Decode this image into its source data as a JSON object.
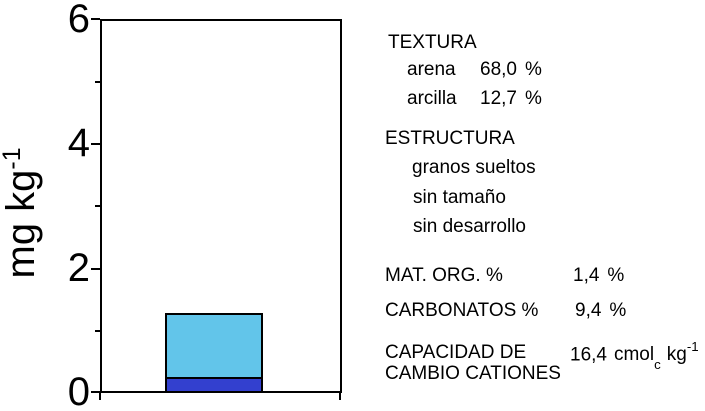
{
  "yaxis": {
    "label_text": "mg kg",
    "label_sup": "-1",
    "labels_top_to_bottom": [
      "6",
      "4",
      "2",
      "0"
    ]
  },
  "chart_data": {
    "type": "bar",
    "stacked": true,
    "categories": [
      ""
    ],
    "series": [
      {
        "name": "lower-dark-blue-fraction",
        "values": [
          0.2
        ],
        "color": "#3340CF"
      },
      {
        "name": "upper-light-blue-fraction",
        "values": [
          1.0
        ],
        "color": "#62C5EA"
      }
    ],
    "total": 1.2,
    "title": "",
    "xlabel": "",
    "ylabel": "mg kg⁻¹",
    "ylim": [
      0,
      6
    ],
    "ytick_major_step": 2,
    "ytick_minor_step": 1,
    "grid": false,
    "legend": false,
    "bar_outline_color": "#000000"
  },
  "panel": {
    "textura": {
      "title": "TEXTURA",
      "rows": [
        {
          "label": "arena",
          "value": "68,0",
          "unit": "%"
        },
        {
          "label": "arcilla",
          "value": "12,7",
          "unit": "%"
        }
      ]
    },
    "estructura": {
      "title": "ESTRUCTURA",
      "items": [
        "granos sueltos",
        "sin tamaño",
        "sin desarrollo"
      ]
    },
    "mat_org": {
      "label": "MAT. ORG. %",
      "value": "1,4",
      "unit": "%"
    },
    "carbonatos": {
      "label": "CARBONATOS %",
      "value": "9,4",
      "unit": "%"
    },
    "cic": {
      "label_line1": "CAPACIDAD DE",
      "label_line2": "CAMBIO CATIONES",
      "value": "16,4",
      "unit_main": "cmol",
      "unit_sub": "c",
      "unit_tail": "kg",
      "unit_sup": "-1"
    }
  }
}
